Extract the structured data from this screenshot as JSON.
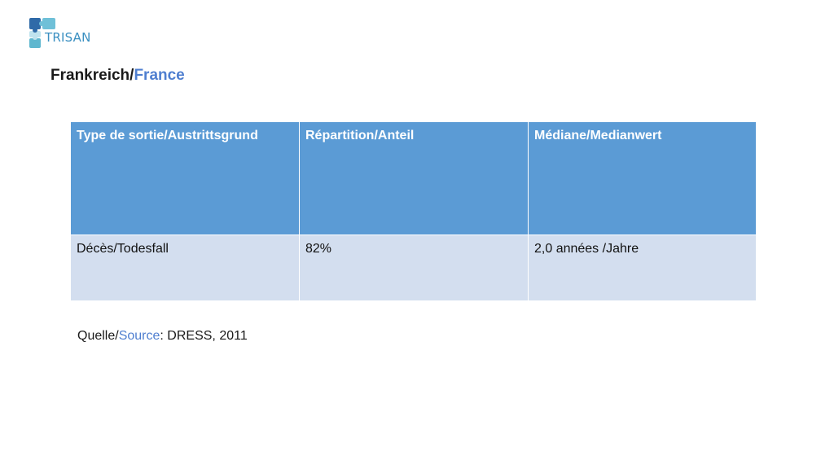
{
  "logo": {
    "text": "TRISAN"
  },
  "title": {
    "part1": "Frankreich/",
    "part2": "France"
  },
  "table": {
    "headers": [
      "Type de sortie/Austrittsgrund",
      "Répartition/Anteil",
      "Médiane/Medianwert"
    ],
    "rows": [
      [
        "Décès/Todesfall",
        "82%",
        "2,0 années /Jahre"
      ]
    ]
  },
  "source": {
    "label1": "Quelle/",
    "label2": "Source",
    "value": ": DRESS, 2011"
  },
  "colors": {
    "header_bg": "#5b9bd5",
    "row_bg": "#d3deef",
    "accent": "#4f7fd0",
    "logo": "#3a8fc1"
  }
}
